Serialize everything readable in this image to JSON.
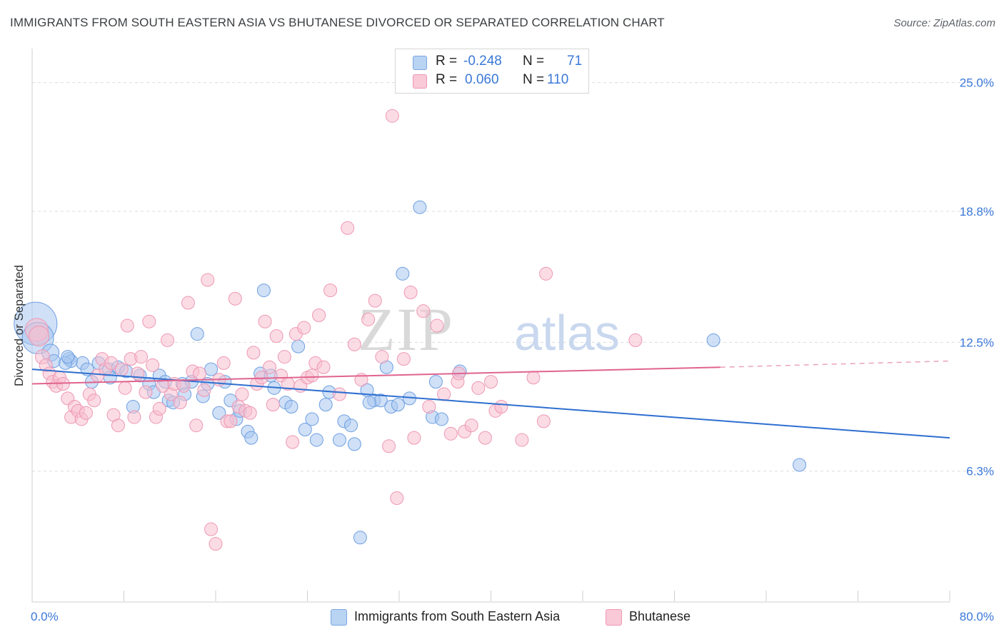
{
  "title": "IMMIGRANTS FROM SOUTH EASTERN ASIA VS BHUTANESE DIVORCED OR SEPARATED CORRELATION CHART",
  "source": "Source: ZipAtlas.com",
  "watermark": {
    "zip": "ZIP",
    "atlas": "atlas"
  },
  "legend": {
    "r_label": "R =",
    "n_label": "N =",
    "series": [
      {
        "r": "-0.248",
        "n": "71",
        "color": "#a8c7f0",
        "stroke": "#7aa6e0"
      },
      {
        "r": "0.060",
        "n": "110",
        "color": "#f7bfd0",
        "stroke": "#ee97b3"
      }
    ]
  },
  "chart_data": {
    "type": "scatter",
    "title": "IMMIGRANTS FROM SOUTH EASTERN ASIA VS BHUTANESE DIVORCED OR SEPARATED CORRELATION CHART",
    "xlabel": "",
    "ylabel": "Divorced or Separated",
    "xlim": [
      0,
      80
    ],
    "ylim": [
      0,
      26.5
    ],
    "x_tick_labels": [
      "0.0%",
      "80.0%"
    ],
    "y_ticks": [
      6.3,
      12.5,
      18.8,
      25.0
    ],
    "y_tick_labels": [
      "6.3%",
      "12.5%",
      "18.8%",
      "25.0%"
    ],
    "grid": "horizontal dashed",
    "legend_position": "bottom-center",
    "series": [
      {
        "name": "Immigrants from South Eastern Asia",
        "color": "#a8c7f0",
        "stroke": "#6d9fe0",
        "trend": {
          "x": [
            0,
            80
          ],
          "y": [
            11.2,
            7.9
          ],
          "color": "#2f6fd0"
        },
        "points": [
          [
            0.3,
            13.4,
            30
          ],
          [
            0.5,
            12.7,
            22
          ],
          [
            1.6,
            12.0,
            12
          ],
          [
            1.9,
            11.6,
            9
          ],
          [
            3.2,
            11.7,
            9
          ],
          [
            3.4,
            11.6,
            9
          ],
          [
            2.9,
            11.5,
            9
          ],
          [
            4.4,
            11.5,
            9
          ],
          [
            5.2,
            10.6,
            9
          ],
          [
            4.8,
            11.2,
            9
          ],
          [
            5.8,
            11.5,
            9
          ],
          [
            6.7,
            11.2,
            9
          ],
          [
            7.5,
            11.3,
            9
          ],
          [
            8.2,
            11.1,
            9
          ],
          [
            6.8,
            10.8,
            9
          ],
          [
            9.4,
            10.9,
            9
          ],
          [
            10.2,
            10.5,
            9
          ],
          [
            10.6,
            10.1,
            9
          ],
          [
            11.1,
            10.9,
            9
          ],
          [
            11.6,
            10.6,
            9
          ],
          [
            8.8,
            9.4,
            9
          ],
          [
            11.9,
            9.7,
            9
          ],
          [
            12.3,
            9.6,
            9
          ],
          [
            13.1,
            10.5,
            9
          ],
          [
            13.3,
            10.0,
            9
          ],
          [
            13.9,
            10.6,
            9
          ],
          [
            14.4,
            12.9,
            9
          ],
          [
            14.9,
            9.9,
            9
          ],
          [
            15.3,
            10.5,
            9
          ],
          [
            15.6,
            11.2,
            9
          ],
          [
            16.3,
            9.1,
            9
          ],
          [
            16.8,
            10.6,
            9
          ],
          [
            17.3,
            9.7,
            9
          ],
          [
            17.8,
            8.8,
            9
          ],
          [
            18.1,
            9.2,
            9
          ],
          [
            18.8,
            8.2,
            9
          ],
          [
            19.1,
            7.9,
            9
          ],
          [
            19.9,
            11.0,
            9
          ],
          [
            20.2,
            15.0,
            9
          ],
          [
            20.8,
            10.9,
            9
          ],
          [
            21.1,
            10.3,
            9
          ],
          [
            22.1,
            9.6,
            9
          ],
          [
            22.6,
            9.4,
            9
          ],
          [
            23.2,
            12.3,
            9
          ],
          [
            23.8,
            8.3,
            9
          ],
          [
            24.4,
            8.8,
            9
          ],
          [
            24.8,
            7.8,
            9
          ],
          [
            25.6,
            9.5,
            9
          ],
          [
            25.9,
            10.1,
            9
          ],
          [
            26.8,
            7.8,
            9
          ],
          [
            27.2,
            8.7,
            9
          ],
          [
            27.8,
            8.5,
            9
          ],
          [
            28.1,
            7.6,
            9
          ],
          [
            28.6,
            3.1,
            9
          ],
          [
            29.2,
            10.2,
            9
          ],
          [
            29.8,
            9.7,
            9
          ],
          [
            30.4,
            9.7,
            9
          ],
          [
            30.9,
            11.3,
            9
          ],
          [
            31.3,
            9.4,
            9
          ],
          [
            31.9,
            9.5,
            9
          ],
          [
            32.3,
            15.8,
            9
          ],
          [
            32.9,
            9.8,
            9
          ],
          [
            33.8,
            19.0,
            9
          ],
          [
            34.9,
            8.9,
            9
          ],
          [
            35.2,
            10.6,
            9
          ],
          [
            35.7,
            8.8,
            9
          ],
          [
            37.3,
            11.1,
            9
          ],
          [
            59.4,
            12.6,
            9
          ],
          [
            66.9,
            6.6,
            9
          ],
          [
            29.4,
            9.6,
            9
          ],
          [
            3.1,
            11.8,
            9
          ]
        ]
      },
      {
        "name": "Bhutanese",
        "color": "#f7bfd0",
        "stroke": "#ee97b3",
        "trend": {
          "x": [
            0,
            60
          ],
          "y": [
            10.5,
            11.3
          ],
          "dash_to": [
            80,
            11.6
          ],
          "color": "#e0648f"
        },
        "points": [
          [
            0.4,
            13.1,
            16
          ],
          [
            0.6,
            12.8,
            14
          ],
          [
            0.9,
            11.8,
            10
          ],
          [
            1.2,
            11.4,
            9
          ],
          [
            1.5,
            11.0,
            9
          ],
          [
            1.8,
            10.6,
            9
          ],
          [
            2.1,
            10.4,
            9
          ],
          [
            2.4,
            10.8,
            9
          ],
          [
            2.7,
            10.5,
            9
          ],
          [
            3.1,
            9.8,
            9
          ],
          [
            3.4,
            8.9,
            9
          ],
          [
            3.7,
            9.4,
            9
          ],
          [
            4.0,
            9.2,
            9
          ],
          [
            4.3,
            8.8,
            9
          ],
          [
            4.7,
            9.1,
            9
          ],
          [
            5.0,
            10.0,
            9
          ],
          [
            5.4,
            9.7,
            9
          ],
          [
            5.7,
            10.9,
            9
          ],
          [
            6.1,
            11.7,
            9
          ],
          [
            6.4,
            11.2,
            9
          ],
          [
            6.9,
            11.5,
            9
          ],
          [
            7.1,
            9.0,
            9
          ],
          [
            7.5,
            8.5,
            9
          ],
          [
            7.8,
            11.2,
            9
          ],
          [
            8.1,
            10.3,
            9
          ],
          [
            8.3,
            13.3,
            9
          ],
          [
            8.6,
            11.7,
            9
          ],
          [
            8.9,
            8.9,
            9
          ],
          [
            9.2,
            11.0,
            9
          ],
          [
            9.5,
            11.8,
            9
          ],
          [
            9.9,
            10.1,
            9
          ],
          [
            10.2,
            13.5,
            9
          ],
          [
            10.5,
            11.4,
            9
          ],
          [
            10.8,
            8.9,
            9
          ],
          [
            11.1,
            9.3,
            9
          ],
          [
            11.4,
            10.4,
            9
          ],
          [
            11.8,
            12.6,
            9
          ],
          [
            12.1,
            10.0,
            9
          ],
          [
            12.4,
            10.5,
            9
          ],
          [
            12.9,
            9.6,
            9
          ],
          [
            13.2,
            10.4,
            9
          ],
          [
            13.6,
            14.4,
            9
          ],
          [
            14.0,
            11.1,
            9
          ],
          [
            14.3,
            8.5,
            9
          ],
          [
            14.6,
            11.0,
            9
          ],
          [
            15.0,
            10.2,
            9
          ],
          [
            15.3,
            15.5,
            9
          ],
          [
            15.6,
            3.5,
            9
          ],
          [
            16.0,
            2.8,
            9
          ],
          [
            16.3,
            10.7,
            9
          ],
          [
            16.7,
            11.5,
            9
          ],
          [
            17.0,
            8.7,
            9
          ],
          [
            17.3,
            8.7,
            9
          ],
          [
            17.7,
            14.6,
            9
          ],
          [
            18.0,
            9.4,
            9
          ],
          [
            18.3,
            10.0,
            9
          ],
          [
            18.6,
            9.2,
            9
          ],
          [
            19.0,
            9.1,
            9
          ],
          [
            19.3,
            12.0,
            9
          ],
          [
            19.6,
            10.5,
            9
          ],
          [
            20.0,
            10.8,
            9
          ],
          [
            20.3,
            13.5,
            9
          ],
          [
            20.7,
            11.3,
            9
          ],
          [
            21.0,
            9.5,
            9
          ],
          [
            21.3,
            12.8,
            9
          ],
          [
            21.7,
            10.9,
            9
          ],
          [
            22.0,
            11.8,
            9
          ],
          [
            22.3,
            10.5,
            9
          ],
          [
            22.7,
            7.7,
            9
          ],
          [
            23.0,
            12.9,
            9
          ],
          [
            23.4,
            10.4,
            9
          ],
          [
            23.7,
            13.2,
            9
          ],
          [
            24.0,
            10.8,
            9
          ],
          [
            24.4,
            10.9,
            9
          ],
          [
            24.7,
            11.5,
            9
          ],
          [
            25.0,
            13.8,
            9
          ],
          [
            25.4,
            11.3,
            9
          ],
          [
            26.0,
            15.0,
            9
          ],
          [
            26.8,
            10.0,
            9
          ],
          [
            27.5,
            18.0,
            9
          ],
          [
            28.1,
            12.4,
            9
          ],
          [
            28.7,
            10.7,
            9
          ],
          [
            29.3,
            13.6,
            9
          ],
          [
            29.9,
            14.5,
            9
          ],
          [
            30.5,
            11.8,
            9
          ],
          [
            31.1,
            7.5,
            9
          ],
          [
            31.4,
            23.4,
            9
          ],
          [
            31.8,
            5.0,
            9
          ],
          [
            32.4,
            11.7,
            9
          ],
          [
            33.0,
            14.9,
            9
          ],
          [
            33.3,
            7.9,
            9
          ],
          [
            34.1,
            14.0,
            9
          ],
          [
            34.6,
            9.4,
            9
          ],
          [
            35.3,
            13.3,
            9
          ],
          [
            35.9,
            10.0,
            9
          ],
          [
            36.5,
            8.1,
            9
          ],
          [
            37.1,
            10.6,
            9
          ],
          [
            37.7,
            8.2,
            9
          ],
          [
            38.3,
            8.5,
            9
          ],
          [
            38.9,
            10.3,
            9
          ],
          [
            39.5,
            7.9,
            9
          ],
          [
            40.0,
            10.6,
            9
          ],
          [
            40.4,
            9.2,
            9
          ],
          [
            40.9,
            9.4,
            9
          ],
          [
            42.7,
            7.8,
            9
          ],
          [
            44.6,
            8.7,
            9
          ],
          [
            44.8,
            15.8,
            9
          ],
          [
            43.7,
            10.8,
            9
          ],
          [
            52.6,
            12.6,
            9
          ],
          [
            37.2,
            11.0,
            9
          ]
        ]
      }
    ]
  }
}
